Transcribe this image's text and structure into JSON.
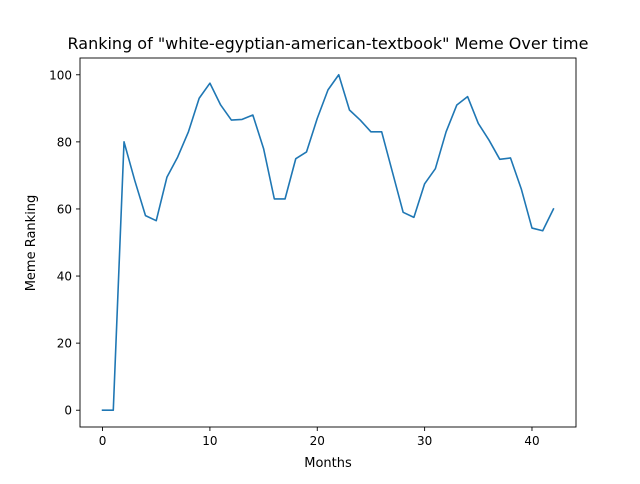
{
  "chart_data": {
    "type": "line",
    "title": "Ranking of \"white-egyptian-american-textbook\" Meme Over time",
    "xlabel": "Months",
    "ylabel": "Meme Ranking",
    "xlim": [
      -2.1,
      44.1
    ],
    "ylim": [
      -5,
      105
    ],
    "xticks": [
      0,
      10,
      20,
      30,
      40
    ],
    "yticks": [
      0,
      20,
      40,
      60,
      80,
      100
    ],
    "grid": false,
    "series": [
      {
        "color": "#1f77b4",
        "x": [
          0,
          1,
          2,
          3,
          4,
          5,
          6,
          7,
          8,
          9,
          10,
          11,
          12,
          13,
          14,
          15,
          16,
          17,
          18,
          19,
          20,
          21,
          22,
          23,
          24,
          25,
          26,
          27,
          28,
          29,
          30,
          31,
          32,
          33,
          34,
          35,
          36,
          37,
          38,
          39,
          40,
          41,
          42
        ],
        "values": [
          0,
          0,
          80,
          68.5,
          58,
          56.5,
          69.5,
          75.5,
          83,
          93,
          97.5,
          91,
          86.5,
          86.7,
          88,
          78,
          63,
          63,
          75,
          77,
          87,
          95.5,
          100,
          89.5,
          86.5,
          83,
          83,
          71,
          59,
          57.5,
          67.5,
          72,
          83,
          91,
          93.5,
          85.5,
          80.5,
          74.8,
          75.2,
          66,
          54.3,
          53.5,
          60
        ]
      }
    ]
  }
}
